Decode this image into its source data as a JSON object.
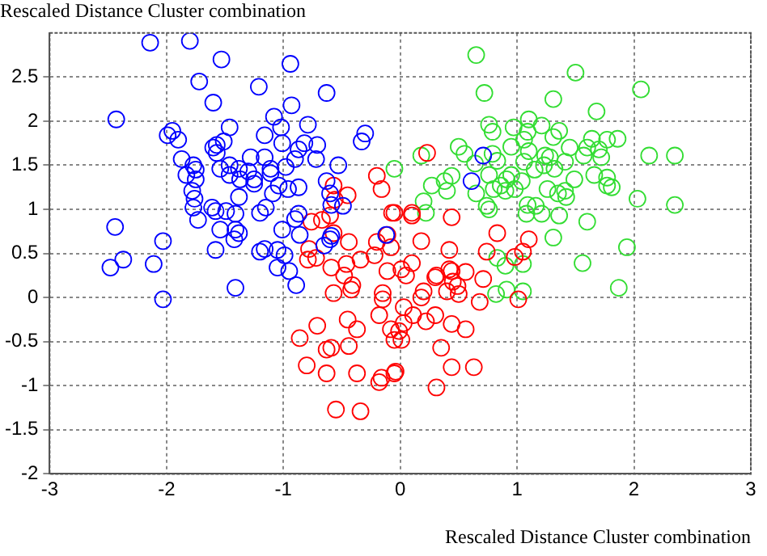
{
  "chart_data": {
    "type": "scatter",
    "ylabel": "Rescaled Distance Cluster combination",
    "xlabel": "Rescaled Distance Cluster combination",
    "xlim": [
      -3,
      3
    ],
    "xticks": [
      -3,
      -2,
      -1,
      0,
      1,
      2,
      3
    ],
    "ylim": [
      -2,
      3
    ],
    "yticks": [
      -2,
      -1.5,
      -1,
      -0.5,
      0,
      0.5,
      1,
      1.5,
      2,
      2.5
    ],
    "grid": true,
    "legend": false,
    "marker": "circle",
    "series": [
      {
        "color": "#0000ff",
        "x": [
          -2.14,
          -1.8,
          -1.53,
          -0.94,
          -1.72,
          -1.21,
          -0.63,
          -1.6,
          -0.93,
          -2.43,
          -1.08,
          -0.79,
          -1.02,
          -1.46,
          -1.95,
          -1.99,
          -1.9,
          -1.16,
          -0.3,
          -0.33,
          -1.51,
          -1.57,
          -1.6,
          -1.57,
          -1.01,
          -0.82,
          -0.71,
          -0.87,
          -0.9,
          -0.72,
          -1.28,
          -1.16,
          -1.87,
          -1.77,
          -1.75,
          -1.83,
          -1.75,
          -1.54,
          -1.46,
          -1.38,
          -1.46,
          -1.37,
          -1.3,
          -1.25,
          -1.25,
          -1.11,
          -1.11,
          -0.98,
          -0.53,
          -0.63,
          -1.04,
          -0.96,
          -0.87,
          -1.09,
          -1.78,
          -1.76,
          -1.38,
          -0.6,
          -0.59,
          -0.49,
          -1.77,
          -1.61,
          -1.58,
          -1.49,
          -1.41,
          -1.15,
          -1.2,
          -0.87,
          -0.9,
          -1.73,
          -2.44,
          -1.54,
          -1.41,
          -1.38,
          -1.42,
          -1.01,
          -0.86,
          -0.59,
          -0.6,
          -2.03,
          -1.58,
          -1.2,
          -1.16,
          -1.05,
          -0.65,
          -2.37,
          -2.48,
          -2.11,
          -0.99,
          -1.05,
          -0.95,
          -1.41,
          -2.03,
          -0.89,
          0.71,
          0.61,
          -0.12
        ],
        "values": [
          2.89,
          2.91,
          2.7,
          2.65,
          2.45,
          2.39,
          2.32,
          2.21,
          2.18,
          2.02,
          2.05,
          1.96,
          1.93,
          1.93,
          1.89,
          1.84,
          1.79,
          1.84,
          1.86,
          1.77,
          1.77,
          1.73,
          1.7,
          1.64,
          1.75,
          1.75,
          1.73,
          1.68,
          1.57,
          1.57,
          1.59,
          1.59,
          1.57,
          1.5,
          1.45,
          1.39,
          1.34,
          1.46,
          1.5,
          1.46,
          1.39,
          1.34,
          1.43,
          1.34,
          1.29,
          1.46,
          1.41,
          1.48,
          1.5,
          1.32,
          1.27,
          1.23,
          1.25,
          1.18,
          1.21,
          1.12,
          1.14,
          1.18,
          1.05,
          1.04,
          1.02,
          1.02,
          0.98,
          0.98,
          0.95,
          1.02,
          0.96,
          0.95,
          0.89,
          0.88,
          0.8,
          0.77,
          0.77,
          0.73,
          0.66,
          0.77,
          0.71,
          0.7,
          0.66,
          0.64,
          0.54,
          0.52,
          0.55,
          0.54,
          0.59,
          0.43,
          0.34,
          0.38,
          0.48,
          0.34,
          0.3,
          0.11,
          -0.02,
          0.14,
          1.61,
          1.32,
          0.71
        ]
      },
      {
        "color": "#ff0000",
        "x": [
          -0.2,
          -0.16,
          -0.57,
          -0.45,
          -0.56,
          -0.07,
          -0.6,
          -0.67,
          -0.76,
          -0.44,
          -0.57,
          -0.2,
          -0.11,
          -0.08,
          -0.78,
          -0.79,
          -0.72,
          -0.34,
          -0.22,
          -0.59,
          -0.46,
          -0.11,
          -0.48,
          -0.41,
          -0.42,
          -0.57,
          -0.15,
          -0.15,
          0.03,
          -0.18,
          -0.45,
          -0.37,
          -0.71,
          -0.86,
          -0.08,
          -0.01,
          -0.05,
          0.01,
          -0.44,
          -0.63,
          -0.59,
          -0.8,
          -0.63,
          -0.37,
          -0.04,
          -0.16,
          -0.18,
          -0.55,
          -0.34,
          0.1,
          0.05,
          0.3,
          0.44,
          0.56,
          0.45,
          0.49,
          0.4,
          0.5,
          0.2,
          0.18,
          0.71,
          0.68,
          1.01,
          0.11,
          0.03,
          0.3,
          0.22,
          0.44,
          0.56,
          0.35,
          0.44,
          0.63,
          -0.05,
          0.31,
          0.23,
          -0.05,
          0.1,
          0.1,
          0.83,
          1.1,
          0.18,
          0.42,
          0.74,
          0.98,
          1.05,
          0.01,
          0.42,
          0.31,
          0.44
        ],
        "values": [
          1.38,
          1.23,
          1.27,
          1.16,
          1.11,
          0.96,
          0.93,
          0.88,
          0.86,
          0.63,
          0.73,
          0.63,
          0.71,
          0.57,
          0.55,
          0.43,
          0.45,
          0.43,
          0.48,
          0.34,
          0.38,
          0.3,
          0.25,
          0.14,
          0.09,
          0.05,
          0.05,
          -0.02,
          -0.11,
          -0.2,
          -0.25,
          -0.36,
          -0.32,
          -0.46,
          -0.36,
          -0.38,
          -0.48,
          -0.48,
          -0.55,
          -0.59,
          -0.57,
          -0.77,
          -0.86,
          -0.86,
          -0.84,
          -0.91,
          -0.96,
          -1.27,
          -1.29,
          0.39,
          0.25,
          0.23,
          0.3,
          0.29,
          0.18,
          0.13,
          0.07,
          0.04,
          0.07,
          0.0,
          0.21,
          -0.05,
          -0.02,
          -0.2,
          -0.29,
          -0.2,
          -0.27,
          -0.3,
          -0.36,
          -0.57,
          -0.79,
          -0.79,
          -0.86,
          -1.02,
          1.64,
          0.96,
          0.96,
          0.93,
          0.73,
          0.66,
          0.64,
          0.54,
          0.52,
          0.46,
          0.52,
          0.32,
          0.32,
          0.25,
          0.91
        ]
      },
      {
        "color": "#33dd33",
        "x": [
          0.65,
          1.5,
          2.06,
          0.72,
          1.31,
          1.68,
          1.1,
          1.21,
          1.36,
          0.97,
          0.76,
          0.79,
          1.09,
          1.31,
          1.64,
          1.77,
          1.86,
          0.95,
          1.06,
          1.45,
          1.6,
          1.7,
          0.5,
          0.18,
          0.55,
          0.79,
          1.1,
          1.24,
          1.28,
          1.57,
          1.72,
          2.13,
          2.35,
          0.64,
          0.83,
          1.06,
          1.15,
          1.23,
          1.32,
          1.41,
          -0.05,
          0.44,
          0.38,
          0.27,
          0.76,
          0.95,
          1.04,
          0.91,
          0.86,
          0.98,
          0.9,
          0.8,
          0.65,
          0.4,
          1.49,
          1.66,
          1.77,
          1.77,
          1.81,
          1.26,
          1.35,
          1.41,
          1.42,
          2.03,
          2.35,
          0.2,
          0.22,
          0.74,
          0.76,
          1.09,
          1.16,
          1.21,
          1.08,
          1.36,
          1.6,
          1.31,
          1.94,
          0.83,
          0.9,
          1.56,
          1.05,
          1.87,
          0.82,
          0.91,
          1.05
        ],
        "values": [
          2.75,
          2.55,
          2.36,
          2.32,
          2.25,
          2.11,
          2.02,
          1.95,
          1.89,
          1.93,
          1.96,
          1.88,
          1.88,
          1.82,
          1.8,
          1.79,
          1.8,
          1.71,
          1.79,
          1.7,
          1.7,
          1.68,
          1.71,
          1.61,
          1.63,
          1.63,
          1.66,
          1.61,
          1.59,
          1.61,
          1.59,
          1.61,
          1.61,
          1.52,
          1.55,
          1.54,
          1.45,
          1.5,
          1.46,
          1.54,
          1.46,
          1.38,
          1.32,
          1.27,
          1.39,
          1.39,
          1.32,
          1.34,
          1.27,
          1.23,
          1.21,
          1.23,
          1.18,
          1.21,
          1.34,
          1.39,
          1.36,
          1.27,
          1.25,
          1.23,
          1.18,
          1.21,
          1.14,
          1.12,
          1.05,
          1.09,
          0.96,
          1.04,
          1.0,
          1.05,
          1.04,
          0.95,
          0.95,
          0.93,
          0.86,
          0.68,
          0.57,
          0.45,
          0.36,
          0.39,
          0.38,
          0.11,
          0.04,
          0.09,
          0.07
        ]
      }
    ]
  }
}
